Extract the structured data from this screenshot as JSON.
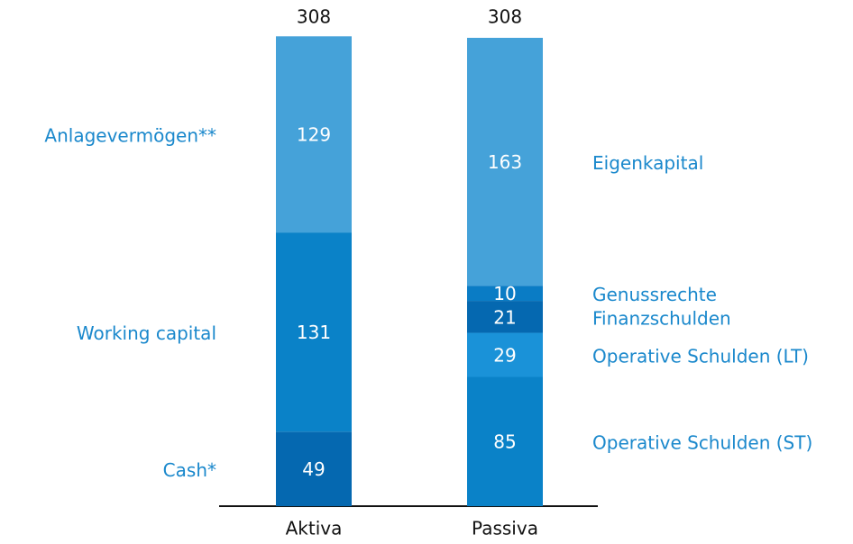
{
  "chart_data": {
    "type": "stacked_bar",
    "categories": [
      "Aktiva",
      "Passiva"
    ],
    "totals": [
      308,
      308
    ],
    "series": [
      {
        "name": "Cash*",
        "color": "#0568b0",
        "values": [
          49,
          null
        ]
      },
      {
        "name": "Working capital",
        "color": "#0a82c8",
        "values": [
          131,
          null
        ]
      },
      {
        "name": "Anlagevermögen**",
        "color": "#45a2d9",
        "values": [
          129,
          null
        ]
      },
      {
        "name": "Operative Schulden (ST)",
        "color": "#0a82c8",
        "values": [
          null,
          85
        ]
      },
      {
        "name": "Operative Schulden (LT)",
        "color": "#1a92d8",
        "values": [
          null,
          29
        ]
      },
      {
        "name": "Finanzschulden",
        "color": "#0568b0",
        "values": [
          null,
          21
        ]
      },
      {
        "name": "Genussrechte",
        "color": "#0a7cc5",
        "values": [
          null,
          10
        ]
      },
      {
        "name": "Eigenkapital",
        "color": "#45a2d9",
        "values": [
          null,
          163
        ]
      }
    ]
  }
}
